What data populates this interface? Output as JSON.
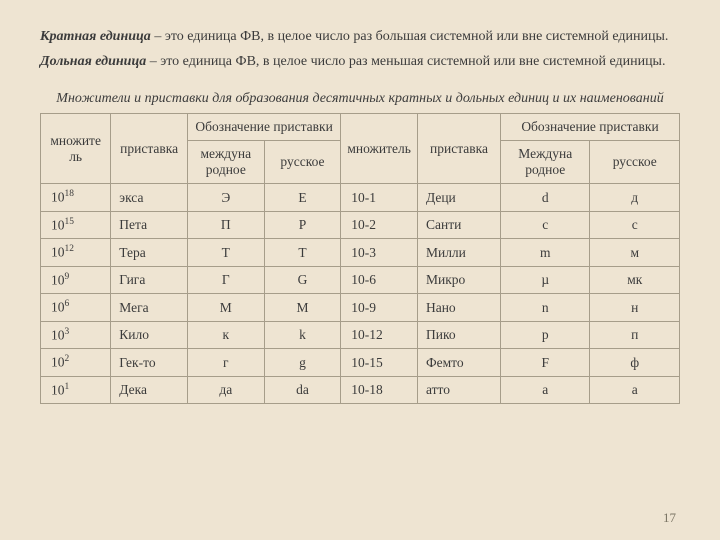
{
  "definitions": {
    "term1": "Кратная единица",
    "def1": "– это единица ФВ, в целое число раз большая системной или вне системной единицы.",
    "term2": "Дольная единица",
    "def2": "– это единица ФВ, в целое число раз меньшая системной или вне системной единицы."
  },
  "tableTitle": "Множители и приставки для образования десятичных кратных и дольных единиц и их наименований",
  "headers": {
    "mult": "множитель",
    "pref": "приставка",
    "notation": "Обозначение приставки",
    "intl1": "междуна\nродное",
    "rus1": "русское",
    "intl2": "Междуна\nродное",
    "rus2": "русское"
  },
  "rows": [
    {
      "m1b": "10",
      "m1e": "18",
      "p1": "экса",
      "i1": "Э",
      "r1": "E",
      "m2": "10-1",
      "p2": "Деци",
      "i2": "d",
      "r2": "д"
    },
    {
      "m1b": "10",
      "m1e": "15",
      "p1": "Пета",
      "i1": "П",
      "r1": "P",
      "m2": "10-2",
      "p2": "Санти",
      "i2": "c",
      "r2": "с"
    },
    {
      "m1b": "10",
      "m1e": "12",
      "p1": "Тера",
      "i1": "Т",
      "r1": "T",
      "m2": "10-3",
      "p2": "Милли",
      "i2": "m",
      "r2": "м"
    },
    {
      "m1b": "10",
      "m1e": "9",
      "p1": "Гига",
      "i1": "Г",
      "r1": "G",
      "m2": "10-6",
      "p2": "Микро",
      "i2": "µ",
      "r2": "мк"
    },
    {
      "m1b": "10",
      "m1e": "6",
      "p1": "Мега",
      "i1": "М",
      "r1": "M",
      "m2": "10-9",
      "p2": "Нано",
      "i2": "n",
      "r2": "н"
    },
    {
      "m1b": "10",
      "m1e": "3",
      "p1": "Кило",
      "i1": "к",
      "r1": "k",
      "m2": "10-12",
      "p2": "Пико",
      "i2": "p",
      "r2": "п"
    },
    {
      "m1b": "10",
      "m1e": "2",
      "p1": "Гек-то",
      "i1": "г",
      "r1": "g",
      "m2": "10-15",
      "p2": "Фемто",
      "i2": "F",
      "r2": "ф"
    },
    {
      "m1b": "10",
      "m1e": "1",
      "p1": "Дека",
      "i1": "да",
      "r1": "da",
      "m2": "10-18",
      "p2": "атто",
      "i2": "a",
      "r2": "а"
    }
  ],
  "pageNumber": "17"
}
